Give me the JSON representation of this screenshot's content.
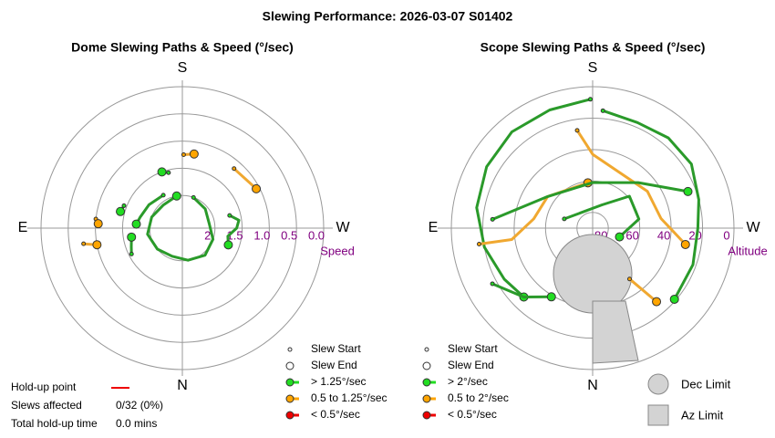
{
  "title": "Slewing Performance: 2026-03-07 S01402",
  "holdup": {
    "point_label": "Hold-up point",
    "point_color": "#ee0000",
    "affected_label": "Slews affected",
    "affected": "0/32 (0%)",
    "time_label": "Total hold-up time",
    "time": "0.0 mins"
  },
  "limits": [
    "Dec Limit",
    "Az Limit"
  ],
  "chart_data": [
    {
      "type": "polar",
      "title": "Dome Slewing Paths & Speed (°/sec)",
      "r_label": "Speed",
      "directions": {
        "S": "S",
        "W": "W",
        "N": "N",
        "E": "E"
      },
      "rlim": [
        2.6,
        0
      ],
      "rticks": [
        2,
        1.5,
        {
          "value": 1,
          "label": "1.0"
        },
        0.5,
        {
          "value": 0,
          "label": "0.0"
        }
      ],
      "legend": {
        "markers": [
          "Slew Start",
          "Slew End"
        ],
        "speeds": [
          {
            "label": "> 1.25°/sec",
            "color": "#22dd22"
          },
          {
            "label": "0.5 to 1.25°/sec",
            "color": "#ffa500"
          },
          {
            "label": "< 0.5°/sec",
            "color": "#ee0000"
          }
        ]
      },
      "series": [
        {
          "color": "#2a9a2a",
          "marker_color": "#22dd22",
          "az": [
            200,
            230,
            260,
            290,
            320,
            350,
            20,
            50,
            80,
            110,
            140,
            170
          ],
          "values": [
            2.0,
            2.05,
            2.1,
            2.0,
            1.95,
            2.0,
            2.05,
            2.0,
            1.95,
            2.0,
            2.05,
            2.0
          ]
        },
        {
          "color": "#2a9a2a",
          "marker_color": "#22dd22",
          "az": [
            255,
            262,
            270,
            280,
            290
          ],
          "values": [
            1.7,
            1.55,
            1.6,
            1.75,
            1.7
          ]
        },
        {
          "color": "#2a9a2a",
          "marker_color": "#22dd22",
          "az": [
            150,
            125,
            105,
            95
          ],
          "values": [
            1.9,
            1.85,
            1.8,
            1.75
          ]
        },
        {
          "color": "#2a9a2a",
          "marker_color": "#22dd22",
          "az": [
            111,
            105
          ],
          "values": [
            1.45,
            1.42
          ]
        },
        {
          "color": "#2a9a2a",
          "marker_color": "#22dd22",
          "az": [
            166,
            160
          ],
          "values": [
            1.55,
            1.5
          ]
        },
        {
          "color": "#2a9a2a",
          "marker_color": "#22dd22",
          "az": [
            63,
            70,
            80
          ],
          "values": [
            1.55,
            1.6,
            1.65
          ]
        },
        {
          "color": "#f0a830",
          "marker_color": "#ffa500",
          "az": [
            181,
            189
          ],
          "values": [
            1.25,
            1.22
          ]
        },
        {
          "color": "#f0a830",
          "marker_color": "#ffa500",
          "az": [
            221,
            242
          ],
          "values": [
            1.15,
            1.06
          ]
        },
        {
          "color": "#f0a830",
          "marker_color": "#ffa500",
          "az": [
            81,
            79
          ],
          "values": [
            0.76,
            1.0
          ]
        },
        {
          "color": "#f0a830",
          "marker_color": "#ffa500",
          "az": [
            96,
            93
          ],
          "values": [
            1.0,
            1.05
          ]
        }
      ]
    },
    {
      "type": "polar",
      "title": "Scope Slewing Paths & Speed (°/sec)",
      "r_label": "Altitude",
      "directions": {
        "S": "S",
        "W": "W",
        "N": "N",
        "E": "E"
      },
      "rlim": [
        90,
        0
      ],
      "rticks": [
        80,
        60,
        40,
        20,
        0
      ],
      "legend": {
        "markers": [
          "Slew Start",
          "Slew End"
        ],
        "speeds": [
          {
            "label": "> 2°/sec",
            "color": "#22dd22"
          },
          {
            "label": "0.5 to 2°/sec",
            "color": "#ffa500"
          },
          {
            "label": "< 0.5°/sec",
            "color": "#ee0000"
          }
        ]
      },
      "series": [
        {
          "color": "#2a9a2a",
          "marker_color": "#22dd22",
          "az": [
            179,
            160,
            140,
            120,
            100,
            80,
            60,
            45
          ],
          "values": [
            8,
            10,
            10,
            12,
            15,
            20,
            25,
            28
          ]
        },
        {
          "color": "#2a9a2a",
          "marker_color": "#22dd22",
          "az": [
            185,
            203,
            220,
            237,
            255,
            270,
            290,
            311
          ],
          "values": [
            15,
            17,
            15,
            15,
            20,
            23,
            22,
            21
          ]
        },
        {
          "color": "#f0a830",
          "marker_color": "#ffa500",
          "az": [
            171,
            180,
            236,
            262,
            273,
            280
          ],
          "values": [
            27,
            43,
            48,
            46,
            38,
            30
          ]
        },
        {
          "color": "#f0a830",
          "marker_color": "#ffa500",
          "az": [
            82,
            82,
            99,
            125,
            174
          ],
          "values": [
            17,
            38,
            52,
            55,
            61
          ]
        },
        {
          "color": "#f0a830",
          "marker_color": "#ffa500",
          "az": [
            324,
            319
          ],
          "values": [
            50,
            28
          ]
        },
        {
          "color": "#2a9a2a",
          "marker_color": "#22dd22",
          "az": [
            95,
            125,
            180,
            225,
            249
          ],
          "values": [
            26,
            55,
            61,
            49,
            25
          ]
        },
        {
          "color": "#2a9a2a",
          "marker_color": "#22dd22",
          "az": [
            61,
            45,
            31
          ],
          "values": [
            17,
            28,
            39
          ]
        },
        {
          "color": "#2a9a2a",
          "marker_color": "#22dd22",
          "az": [
            108,
            202,
            229,
            259,
            288
          ],
          "values": [
            71,
            74,
            59,
            60,
            72
          ]
        }
      ]
    }
  ]
}
